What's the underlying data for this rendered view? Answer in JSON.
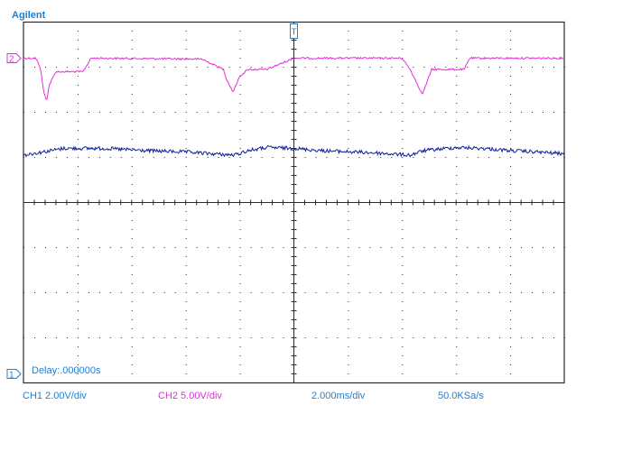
{
  "brand": "Agilent",
  "delay_readout": "Delay:.000000s",
  "status_bar": {
    "ch1_scale": "CH1 2.00V/div",
    "ch2_scale": "CH2 5.00V/div",
    "timebase": "2.000ms/div",
    "sample_rate": "50.0KSa/s"
  },
  "colors": {
    "ch1": "#0e1f9a",
    "ch2": "#e030d8",
    "text_blue": "#1d7fd3",
    "grid": "#2a2a2a"
  },
  "chart_data": {
    "type": "line",
    "grid": true,
    "divisions": {
      "x": 10,
      "y": 8
    },
    "x_unit": "ms",
    "xlim": [
      0,
      20
    ],
    "channel_markers": [
      {
        "label": "1",
        "channel": "CH1",
        "ground_div_from_top": 7.8
      },
      {
        "label": "2",
        "channel": "CH2",
        "ground_div_from_top": 0.8
      }
    ],
    "trigger_marker": {
      "label": "T",
      "x_ms": 10
    },
    "series": [
      {
        "name": "CH2",
        "scale_v_per_div": 5.0,
        "baseline_div_from_top": 0.8,
        "noise_div": 0.02,
        "x": [
          0,
          0.45,
          0.62,
          0.75,
          0.85,
          0.95,
          1.2,
          2.2,
          2.5,
          6.6,
          7.4,
          7.5,
          7.75,
          8.0,
          8.3,
          9.0,
          10.0,
          14.0,
          14.3,
          14.75,
          15.1,
          15.45,
          16.3,
          16.5,
          20.0
        ],
        "y_div_from_top": [
          0.8,
          0.8,
          1.0,
          1.55,
          1.75,
          1.4,
          1.1,
          1.1,
          0.8,
          0.82,
          1.05,
          1.25,
          1.55,
          1.2,
          1.05,
          1.05,
          0.8,
          0.8,
          1.05,
          1.6,
          1.05,
          1.05,
          1.05,
          0.8,
          0.8
        ]
      },
      {
        "name": "CH1",
        "scale_v_per_div": 2.0,
        "noise_div": 0.04,
        "x": [
          0,
          1.0,
          1.5,
          3.0,
          4.5,
          6.0,
          7.0,
          7.8,
          8.3,
          9.0,
          10.0,
          11.0,
          13.0,
          14.3,
          14.8,
          16.0,
          17.0,
          18.0,
          19.0,
          20.0
        ],
        "y_div_from_top": [
          2.95,
          2.85,
          2.8,
          2.8,
          2.85,
          2.88,
          2.92,
          2.95,
          2.85,
          2.78,
          2.8,
          2.85,
          2.9,
          2.95,
          2.85,
          2.78,
          2.8,
          2.85,
          2.88,
          2.92
        ]
      }
    ]
  }
}
